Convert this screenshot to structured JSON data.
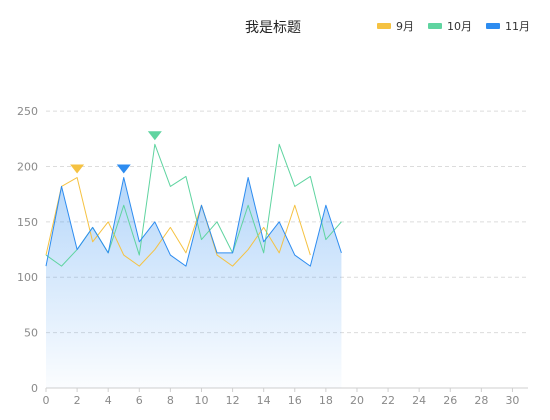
{
  "chart_data": {
    "type": "line",
    "title": "我是标题",
    "legend_position": "top-right",
    "x": [
      0,
      1,
      2,
      3,
      4,
      5,
      6,
      7,
      8,
      9,
      10,
      11,
      12,
      13,
      14,
      15,
      16,
      17,
      18,
      19
    ],
    "xlim": [
      0,
      31
    ],
    "x_ticks": [
      0,
      2,
      4,
      6,
      8,
      10,
      12,
      14,
      16,
      18,
      20,
      22,
      24,
      26,
      28,
      30
    ],
    "ylim": [
      0,
      260
    ],
    "y_ticks": [
      0,
      50,
      100,
      150,
      200,
      250
    ],
    "grid": "horizontal-dashed",
    "series": [
      {
        "name": "9月",
        "color": "#f5c242",
        "values": [
          120,
          182,
          190,
          132,
          150,
          120,
          110,
          125,
          145,
          122,
          165,
          120,
          110,
          125,
          145,
          122,
          165,
          120,
          null,
          null
        ],
        "marker": {
          "x": 2,
          "y": 190
        }
      },
      {
        "name": "10月",
        "color": "#5fd4a0",
        "values": [
          120,
          110,
          125,
          145,
          122,
          165,
          120,
          220,
          182,
          191,
          134,
          150,
          122,
          165,
          122,
          220,
          182,
          191,
          134,
          150
        ],
        "marker": {
          "x": 7,
          "y": 220
        }
      },
      {
        "name": "11月",
        "color": "#2d8cf0",
        "values": [
          110,
          182,
          125,
          145,
          122,
          190,
          132,
          150,
          120,
          110,
          165,
          122,
          122,
          190,
          132,
          150,
          120,
          110,
          165,
          122
        ],
        "marker": {
          "x": 5,
          "y": 190
        },
        "area": true
      }
    ]
  }
}
